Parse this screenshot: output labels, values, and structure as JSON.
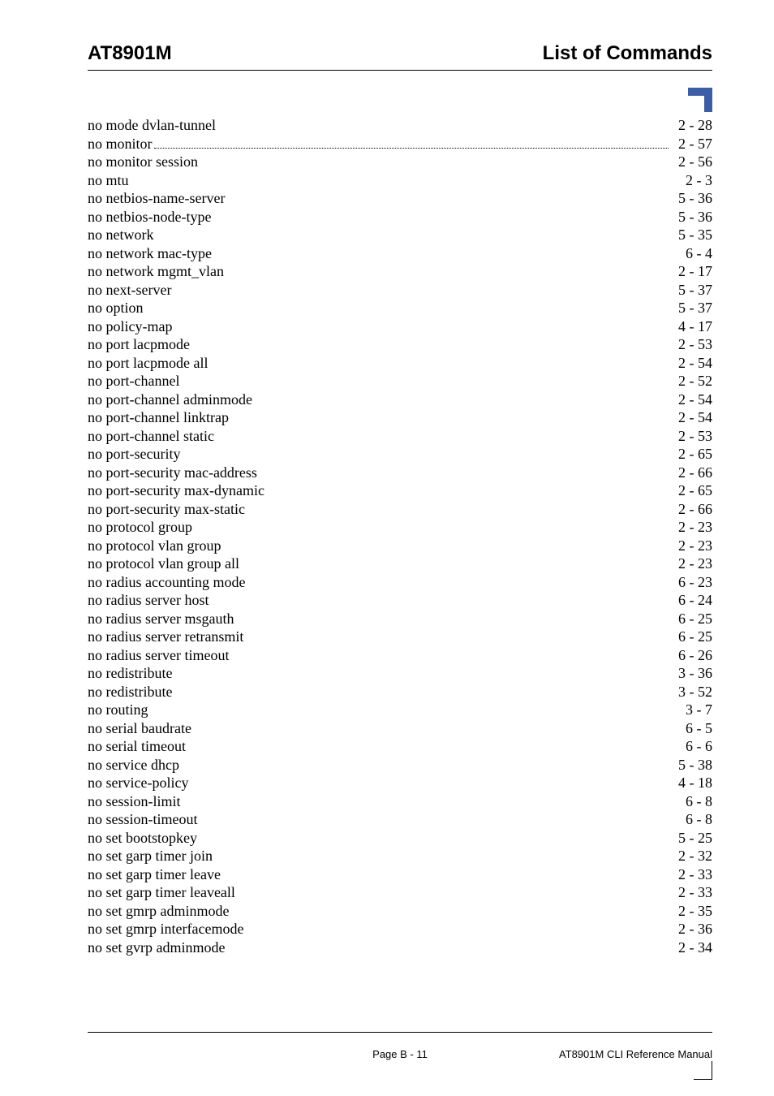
{
  "header": {
    "left": "AT8901M",
    "right": "List of Commands"
  },
  "entries": [
    {
      "label": "no mode dvlan-tunnel",
      "page": "2 - 28",
      "dotted": false
    },
    {
      "label": "no monitor",
      "page": "2 - 57",
      "dotted": true
    },
    {
      "label": "no monitor session",
      "page": "2 - 56",
      "dotted": false
    },
    {
      "label": "no mtu",
      "page": "2 - 3",
      "dotted": false
    },
    {
      "label": "no netbios-name-server",
      "page": "5 - 36",
      "dotted": false
    },
    {
      "label": "no netbios-node-type",
      "page": "5 - 36",
      "dotted": false
    },
    {
      "label": "no network",
      "page": "5 - 35",
      "dotted": false
    },
    {
      "label": "no network mac-type",
      "page": "6 - 4",
      "dotted": false
    },
    {
      "label": "no network mgmt_vlan",
      "page": "2 - 17",
      "dotted": false
    },
    {
      "label": "no next-server",
      "page": "5 - 37",
      "dotted": false
    },
    {
      "label": "no option",
      "page": "5 - 37",
      "dotted": false
    },
    {
      "label": "no policy-map",
      "page": "4 - 17",
      "dotted": false
    },
    {
      "label": "no port lacpmode",
      "page": "2 - 53",
      "dotted": false
    },
    {
      "label": "no port lacpmode all",
      "page": "2 - 54",
      "dotted": false
    },
    {
      "label": "no port-channel",
      "page": "2 - 52",
      "dotted": false
    },
    {
      "label": "no port-channel adminmode",
      "page": "2 - 54",
      "dotted": false
    },
    {
      "label": "no port-channel linktrap",
      "page": "2 - 54",
      "dotted": false
    },
    {
      "label": "no port-channel static",
      "page": "2 - 53",
      "dotted": false
    },
    {
      "label": "no port-security",
      "page": "2 - 65",
      "dotted": false
    },
    {
      "label": "no port-security mac-address",
      "page": "2 - 66",
      "dotted": false
    },
    {
      "label": "no port-security max-dynamic",
      "page": "2 - 65",
      "dotted": false
    },
    {
      "label": "no port-security max-static",
      "page": "2 - 66",
      "dotted": false
    },
    {
      "label": "no protocol group",
      "page": "2 - 23",
      "dotted": false
    },
    {
      "label": "no protocol vlan group",
      "page": "2 - 23",
      "dotted": false
    },
    {
      "label": "no protocol vlan group all",
      "page": "2 - 23",
      "dotted": false
    },
    {
      "label": "no radius accounting mode",
      "page": "6 - 23",
      "dotted": false
    },
    {
      "label": "no radius server host",
      "page": "6 - 24",
      "dotted": false
    },
    {
      "label": "no radius server msgauth",
      "page": "6 - 25",
      "dotted": false
    },
    {
      "label": "no radius server retransmit",
      "page": "6 - 25",
      "dotted": false
    },
    {
      "label": "no radius server timeout",
      "page": "6 - 26",
      "dotted": false
    },
    {
      "label": "no redistribute",
      "page": "3 - 36",
      "dotted": false
    },
    {
      "label": "no redistribute",
      "page": "3 - 52",
      "dotted": false
    },
    {
      "label": "no routing",
      "page": "3 - 7",
      "dotted": false
    },
    {
      "label": "no serial baudrate",
      "page": "6 - 5",
      "dotted": false
    },
    {
      "label": "no serial timeout",
      "page": "6 - 6",
      "dotted": false
    },
    {
      "label": "no service dhcp",
      "page": "5 - 38",
      "dotted": false
    },
    {
      "label": "no service-policy",
      "page": "4 - 18",
      "dotted": false
    },
    {
      "label": "no session-limit",
      "page": "6 - 8",
      "dotted": false
    },
    {
      "label": "no session-timeout",
      "page": "6 - 8",
      "dotted": false
    },
    {
      "label": "no set bootstopkey",
      "page": "5 - 25",
      "dotted": false
    },
    {
      "label": "no set garp timer join",
      "page": "2 - 32",
      "dotted": false
    },
    {
      "label": "no set garp timer leave",
      "page": "2 - 33",
      "dotted": false
    },
    {
      "label": "no set garp timer leaveall",
      "page": "2 - 33",
      "dotted": false
    },
    {
      "label": "no set gmrp adminmode",
      "page": "2 - 35",
      "dotted": false
    },
    {
      "label": "no set gmrp interfacemode",
      "page": "2 - 36",
      "dotted": false
    },
    {
      "label": "no set gvrp adminmode",
      "page": "2 - 34",
      "dotted": false
    }
  ],
  "footer": {
    "center": "Page B - 11",
    "right": "AT8901M CLI Reference Manual"
  },
  "colors": {
    "accent": "#3a5fa8",
    "text": "#000000",
    "background": "#ffffff"
  }
}
